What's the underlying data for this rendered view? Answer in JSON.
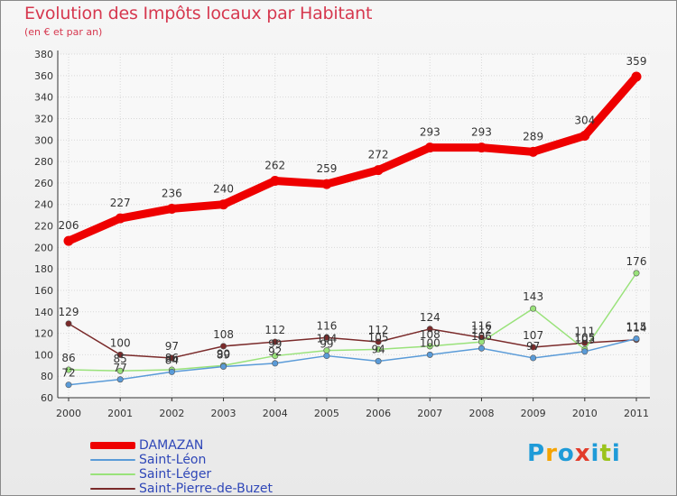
{
  "header": {
    "title": "Evolution des Impôts locaux par Habitant",
    "subtitle": "(en € et par an)"
  },
  "brand": {
    "letters": [
      "P",
      "r",
      "o",
      "x",
      "i",
      "t",
      "i"
    ],
    "colors": [
      "#1f9bd8",
      "#f5a300",
      "#1f9bd8",
      "#e23c2b",
      "#1f9bd8",
      "#9bc31c",
      "#1f9bd8"
    ]
  },
  "chart_data": {
    "type": "line",
    "title": "Evolution des Impôts locaux par Habitant",
    "subtitle": "(en € et par an)",
    "xlabel": "",
    "ylabel": "",
    "x": [
      "2000",
      "2001",
      "2002",
      "2003",
      "2004",
      "2005",
      "2006",
      "2007",
      "2008",
      "2009",
      "2010",
      "2011"
    ],
    "ylim": [
      60,
      380
    ],
    "yticks": [
      60,
      80,
      100,
      120,
      140,
      160,
      180,
      200,
      220,
      240,
      260,
      280,
      300,
      320,
      340,
      360,
      380
    ],
    "grid": true,
    "legend_position": "bottom-left",
    "series": [
      {
        "name": "DAMAZAN",
        "color": "#ee0000",
        "values": [
          206,
          227,
          236,
          240,
          262,
          259,
          272,
          293,
          293,
          289,
          304,
          359
        ],
        "labels": [
          "206",
          "227",
          "236",
          "240",
          "262",
          "259",
          "272",
          "293",
          "293",
          "289",
          "304",
          "359"
        ]
      },
      {
        "name": "Saint-Léon",
        "color": "#5a9bd8",
        "values": [
          72,
          77,
          84,
          89,
          92,
          99,
          94,
          100,
          106,
          97,
          103,
          115
        ],
        "labels": [
          "72",
          "77",
          "84",
          "89",
          "92",
          "99",
          "94",
          "100",
          "106",
          "97",
          "103",
          "115"
        ]
      },
      {
        "name": "Saint-Léger",
        "color": "#99e27a",
        "values": [
          86,
          85,
          86,
          90,
          99,
          104,
          105,
          108,
          112,
          143,
          105,
          176
        ],
        "labels": [
          "86",
          "85",
          "86",
          "90",
          "99",
          "104",
          "105",
          "108",
          "112",
          "143",
          "105",
          "176"
        ]
      },
      {
        "name": "Saint-Pierre-de-Buzet",
        "color": "#7a2a2a",
        "values": [
          129,
          100,
          97,
          108,
          112,
          116,
          112,
          124,
          116,
          107,
          111,
          114
        ],
        "labels": [
          "129",
          "100",
          "97",
          "108",
          "112",
          "116",
          "112",
          "124",
          "116",
          "107",
          "111",
          "114"
        ]
      }
    ]
  }
}
